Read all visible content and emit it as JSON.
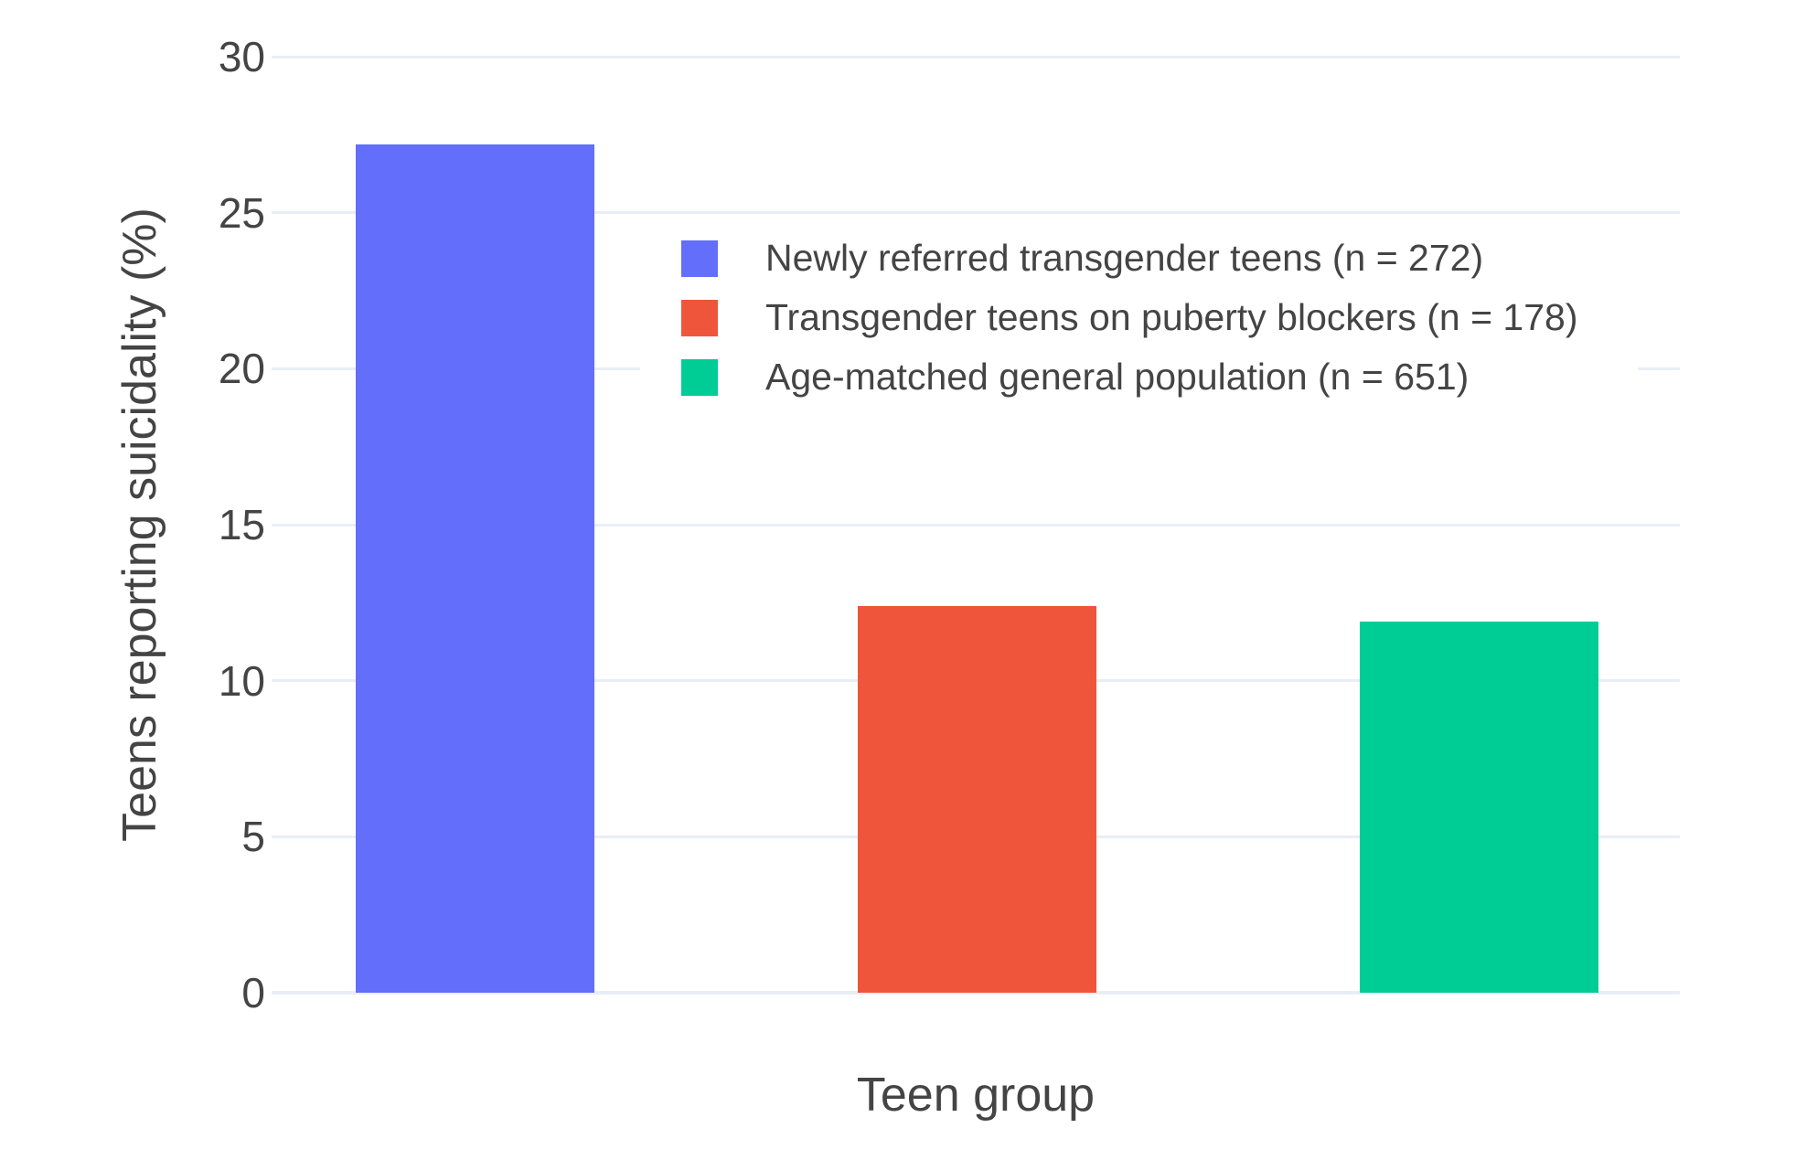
{
  "chart_data": {
    "type": "bar",
    "title": "",
    "xlabel": "Teen group",
    "ylabel": "Teens reporting suicidality (%)",
    "categories": [
      "Newly referred transgender teens (n = 272)",
      "Transgender teens on puberty blockers (n = 178)",
      "Age-matched general population (n = 651)"
    ],
    "values": [
      27.2,
      12.4,
      11.9
    ],
    "bar_colors": [
      "#636EFA",
      "#EF553B",
      "#00CC96"
    ],
    "ylim": [
      0,
      30
    ],
    "yticks": [
      0,
      5,
      10,
      15,
      20,
      25,
      30
    ],
    "grid": true,
    "legend_position": "inside-top-right",
    "legend_entries": [
      {
        "label": "Newly referred transgender teens (n = 272)",
        "color": "#636EFA"
      },
      {
        "label": "Transgender teens on puberty blockers (n = 178)",
        "color": "#EF553B"
      },
      {
        "label": "Age-matched general population (n = 651)",
        "color": "#00CC96"
      }
    ],
    "colors": {
      "grid": "#E9EEF6",
      "text": "#444444",
      "background": "#FFFFFF"
    }
  }
}
